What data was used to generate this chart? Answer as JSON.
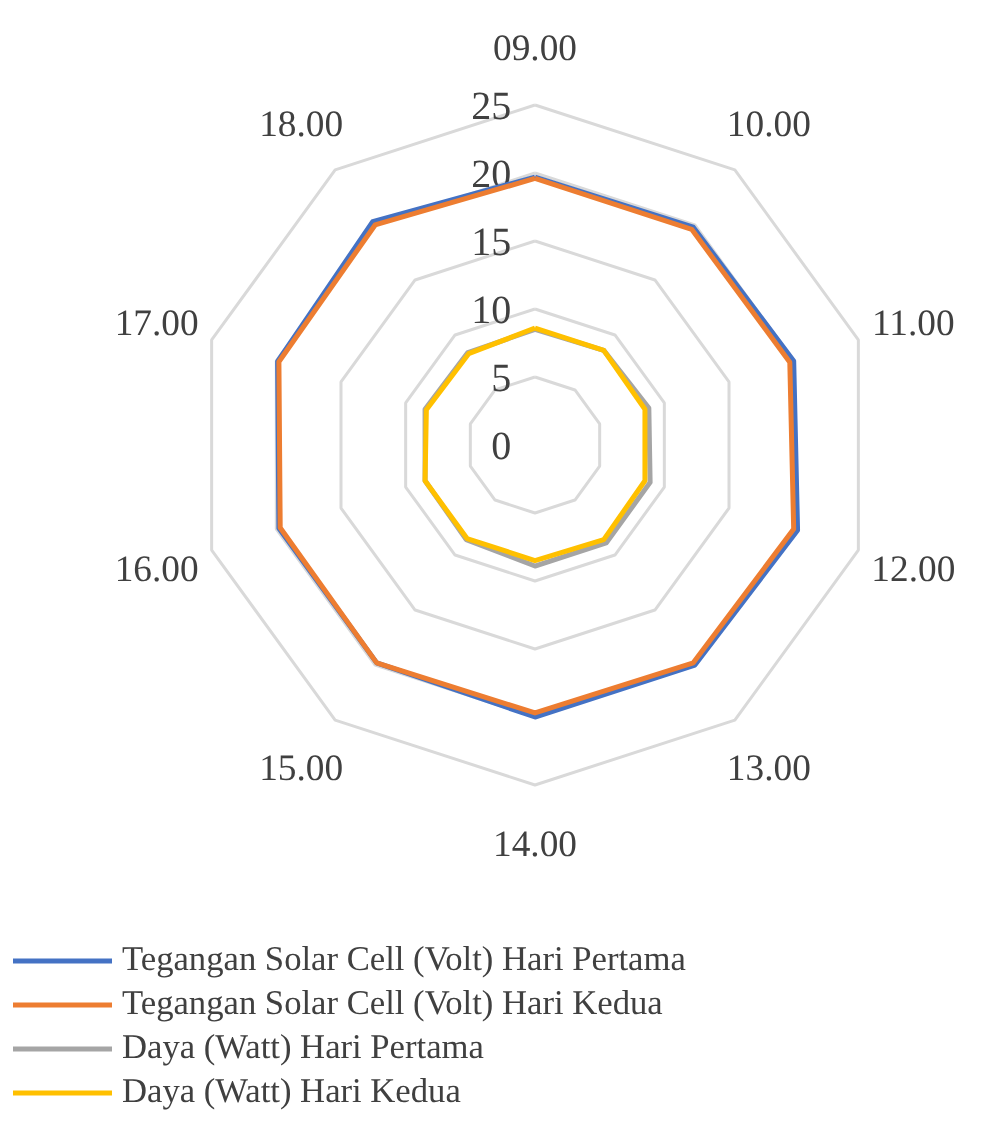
{
  "chart_data": {
    "type": "radar",
    "categories": [
      "09.00",
      "10.00",
      "11.00",
      "12.00",
      "13.00",
      "14.00",
      "15.00",
      "16.00",
      "17.00",
      "18.00"
    ],
    "ylim": [
      0,
      25
    ],
    "yticks": [
      0,
      5,
      10,
      15,
      20,
      25
    ],
    "grid": true,
    "legend": "bottom",
    "series": [
      {
        "name": "Tegangan Solar Cell (Volt) Hari Pertama",
        "color": "#4472c4",
        "values": [
          19.7,
          19.8,
          20.0,
          20.3,
          20.0,
          20.0,
          19.8,
          19.8,
          19.9,
          20.3
        ]
      },
      {
        "name": "Tegangan Solar Cell (Volt) Hari Kedua",
        "color": "#ed7d31",
        "values": [
          19.6,
          19.6,
          19.7,
          20.0,
          19.8,
          19.7,
          19.8,
          19.7,
          19.8,
          20.0
        ]
      },
      {
        "name": "Daya (Watt) Hari Pertama",
        "color": "#a5a5a5",
        "values": [
          8.5,
          8.6,
          8.8,
          8.9,
          8.9,
          8.9,
          8.6,
          8.5,
          8.5,
          8.4
        ]
      },
      {
        "name": "Daya (Watt) Hari Kedua",
        "color": "#ffc000",
        "values": [
          8.6,
          8.6,
          8.5,
          8.5,
          8.6,
          8.5,
          8.5,
          8.5,
          8.4,
          8.3
        ]
      }
    ]
  }
}
